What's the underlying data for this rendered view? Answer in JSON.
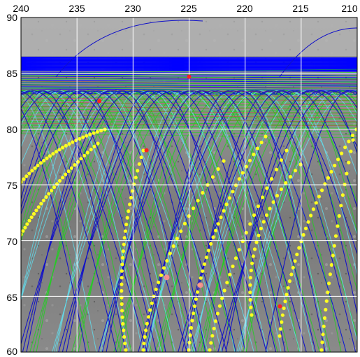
{
  "map": {
    "x_ticks": [
      "240",
      "235",
      "230",
      "225",
      "220",
      "215",
      "210"
    ],
    "y_ticks": [
      "90",
      "85",
      "80",
      "75",
      "70",
      "65",
      "60"
    ],
    "x_range": [
      240,
      210
    ],
    "y_range": [
      60,
      90
    ],
    "colors": {
      "track_blue": "#1010c8",
      "track_green": "#20d020",
      "track_cyan": "#60e0f0",
      "track_red": "#e02020",
      "grid": "#ffffff",
      "yellow_dot": "#ffff20",
      "red_dot": "#ff2020",
      "pink_dot": "#ff9090",
      "blue_band": "#0000ff"
    },
    "red_dots": [
      [
        225.0,
        84.7
      ],
      [
        233.0,
        82.5
      ],
      [
        228.8,
        78.1
      ],
      [
        216.9,
        64.1
      ]
    ],
    "pink_dots": [
      [
        227.0,
        66.7
      ],
      [
        224.0,
        66.0
      ]
    ]
  }
}
